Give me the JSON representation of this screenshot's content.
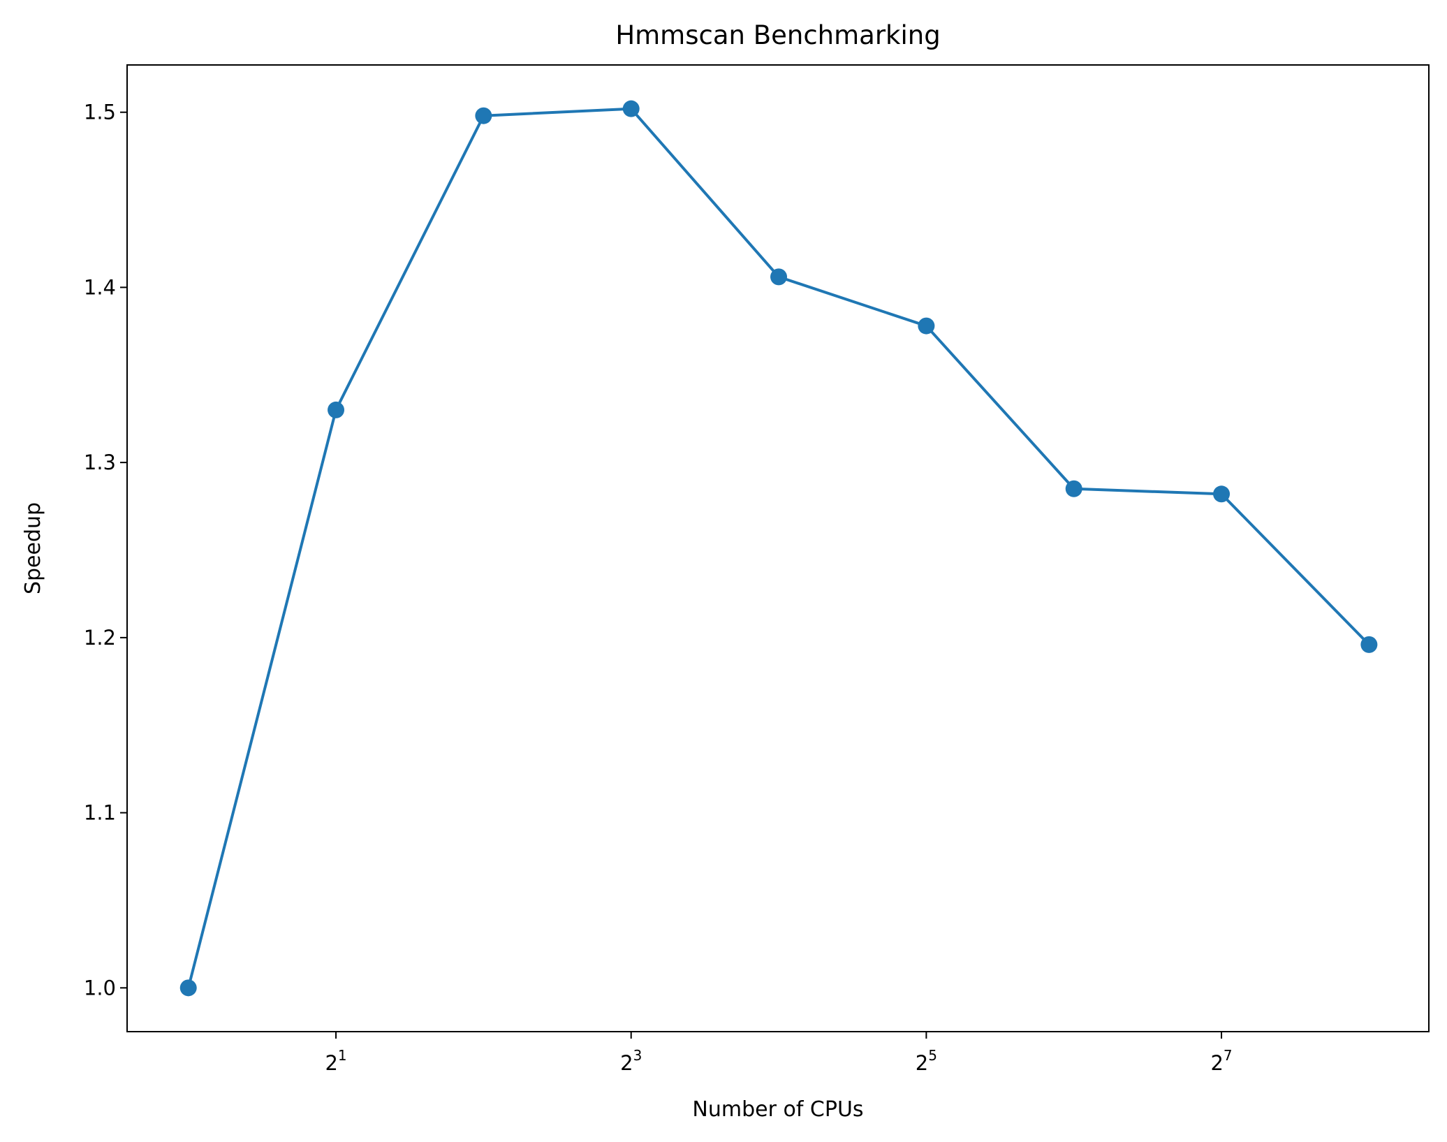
{
  "chart_data": {
    "type": "line",
    "title": "Hmmscan Benchmarking",
    "xlabel": "Number of CPUs",
    "ylabel": "Speedup",
    "xscale": "log2",
    "x": [
      1,
      2,
      4,
      8,
      16,
      32,
      64,
      128,
      256
    ],
    "xlim": [
      0.75,
      339
    ],
    "xticks": [
      {
        "value": 2,
        "base": "2",
        "exp": "1"
      },
      {
        "value": 8,
        "base": "2",
        "exp": "3"
      },
      {
        "value": 32,
        "base": "2",
        "exp": "5"
      },
      {
        "value": 128,
        "base": "2",
        "exp": "7"
      }
    ],
    "ylim": [
      0.975,
      1.527
    ],
    "yticks": [
      {
        "value": 1.0,
        "label": "1.0"
      },
      {
        "value": 1.1,
        "label": "1.1"
      },
      {
        "value": 1.2,
        "label": "1.2"
      },
      {
        "value": 1.3,
        "label": "1.3"
      },
      {
        "value": 1.4,
        "label": "1.4"
      },
      {
        "value": 1.5,
        "label": "1.5"
      }
    ],
    "grid": false,
    "series": [
      {
        "values": [
          1.0,
          1.33,
          1.498,
          1.502,
          1.406,
          1.378,
          1.285,
          1.282,
          1.196
        ],
        "color": "#1f77b4",
        "marker": "circle"
      }
    ]
  }
}
